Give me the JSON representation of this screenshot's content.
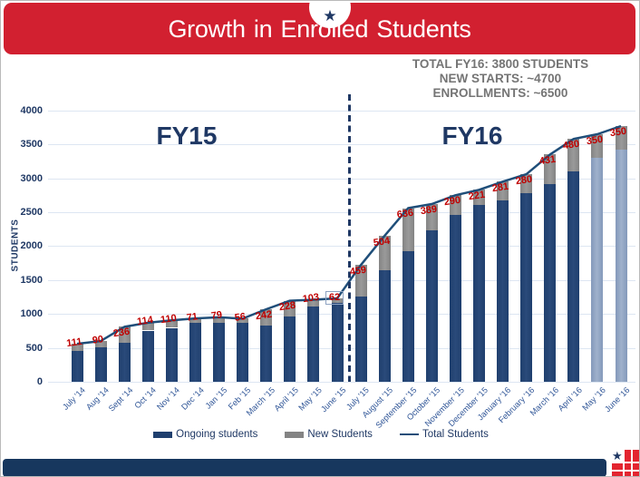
{
  "header": {
    "title": "Growth in Enrolled Students",
    "star_icon": "★"
  },
  "info_box": {
    "line1": "TOTAL FY16: 3800 STUDENTS",
    "line2": "NEW STARTS: ~4700",
    "line3": "ENROLLMENTS: ~6500"
  },
  "period_labels": {
    "fy15": "FY15",
    "fy16": "FY16"
  },
  "axis": {
    "y_title": "STUDENTS",
    "y_ticks": [
      0,
      500,
      1000,
      1500,
      2000,
      2500,
      3000,
      3500,
      4000
    ]
  },
  "legend": [
    {
      "label": "Ongoing students",
      "type": "bar",
      "color": "#1f3f6e"
    },
    {
      "label": "New Students",
      "type": "bar",
      "color": "#848484"
    },
    {
      "label": "Total Students",
      "type": "line",
      "color": "#1f4e79"
    }
  ],
  "colors": {
    "ongoing_bar": "#1f3f6e",
    "ongoing_bar_light": "#2a4a7a",
    "projected_bar": "#8499ba",
    "projected_bar_light": "#9fb1cc",
    "new_bar": "#848484",
    "new_bar_light": "#9a9a9a",
    "total_line": "#1f4e79",
    "data_label": "#c00000",
    "banner_red": "#d22030",
    "navy": "#1f3864",
    "footer_navy": "#17375e",
    "logo_red": "#e32530"
  },
  "chart_data": {
    "type": "bar",
    "stacked": true,
    "title": "Growth in Enrolled Students",
    "ylabel": "STUDENTS",
    "ylim": [
      0,
      4000
    ],
    "categories": [
      "July '14",
      "Aug '14",
      "Sept '14",
      "Oct '14",
      "Nov '14",
      "Dec '14",
      "Jan '15",
      "Feb '15",
      "March '15",
      "April '15",
      "May '15",
      "June '15",
      "July '15",
      "August '15",
      "September '15",
      "October '15",
      "November '15",
      "December '15",
      "January '16",
      "February '16",
      "March '16",
      "April '16",
      "May '16",
      "June '16"
    ],
    "series": [
      {
        "name": "Ongoing students",
        "values": [
          449,
          510,
          574,
          756,
          795,
          864,
          871,
          874,
          828,
          967,
          1107,
          1168,
          1261,
          1646,
          1924,
          2231,
          2460,
          2609,
          2669,
          2780,
          2919,
          3100,
          3300,
          3420
        ]
      },
      {
        "name": "New Students",
        "values": [
          111,
          90,
          236,
          114,
          110,
          71,
          79,
          56,
          242,
          228,
          103,
          62,
          459,
          504,
          636,
          389,
          290,
          221,
          281,
          280,
          431,
          480,
          350,
          350
        ]
      },
      {
        "name": "Total Students",
        "values": [
          560,
          600,
          810,
          870,
          905,
          935,
          950,
          930,
          1070,
          1195,
          1210,
          1230,
          1720,
          2150,
          2560,
          2620,
          2750,
          2830,
          2950,
          3060,
          3350,
          3580,
          3650,
          3770
        ]
      }
    ],
    "data_labels_series": "New Students",
    "boxed_label_index": 11,
    "projected_bar_indices": [
      22,
      23
    ],
    "divider_after_index": 11,
    "legend_position": "bottom"
  }
}
